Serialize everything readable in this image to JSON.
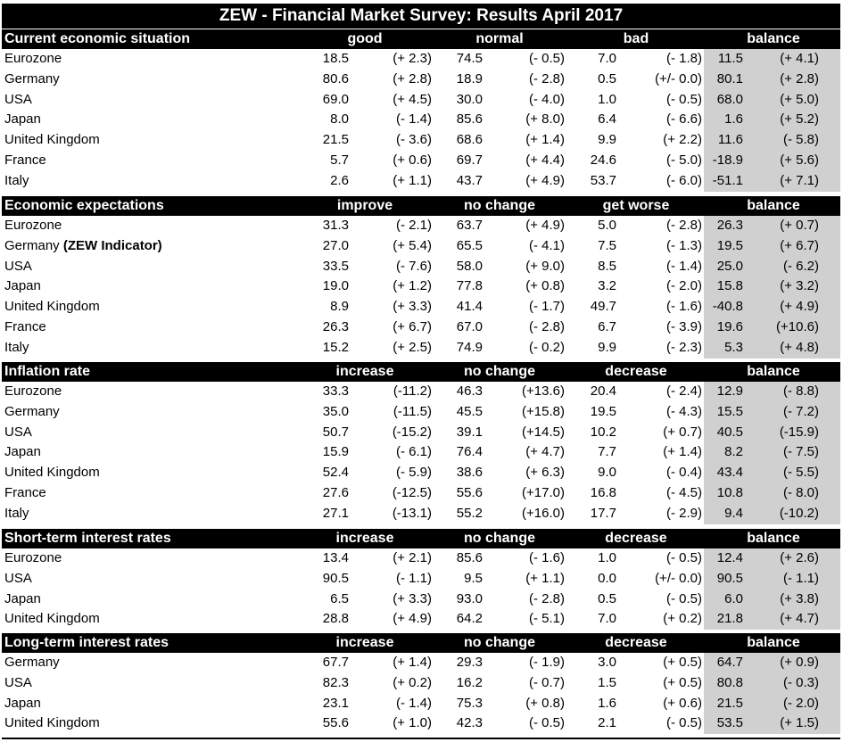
{
  "title": "ZEW - Financial Market Survey: Results April 2017",
  "sections": [
    {
      "name": "Current economic situation",
      "columns": [
        "good",
        "normal",
        "bad",
        "balance"
      ],
      "rows": [
        {
          "label": "Eurozone",
          "values": [
            "18.5",
            "(+ 2.3)",
            "74.5",
            "(- 0.5)",
            "7.0",
            "(- 1.8)",
            "11.5",
            "(+ 4.1)"
          ]
        },
        {
          "label": "Germany",
          "values": [
            "80.6",
            "(+ 2.8)",
            "18.9",
            "(- 2.8)",
            "0.5",
            "(+/- 0.0)",
            "80.1",
            "(+ 2.8)"
          ]
        },
        {
          "label": "USA",
          "values": [
            "69.0",
            "(+ 4.5)",
            "30.0",
            "(- 4.0)",
            "1.0",
            "(- 0.5)",
            "68.0",
            "(+ 5.0)"
          ]
        },
        {
          "label": "Japan",
          "values": [
            "8.0",
            "(- 1.4)",
            "85.6",
            "(+ 8.0)",
            "6.4",
            "(- 6.6)",
            "1.6",
            "(+ 5.2)"
          ]
        },
        {
          "label": "United Kingdom",
          "values": [
            "21.5",
            "(- 3.6)",
            "68.6",
            "(+ 1.4)",
            "9.9",
            "(+ 2.2)",
            "11.6",
            "(- 5.8)"
          ]
        },
        {
          "label": "France",
          "values": [
            "5.7",
            "(+ 0.6)",
            "69.7",
            "(+ 4.4)",
            "24.6",
            "(- 5.0)",
            "-18.9",
            "(+ 5.6)"
          ]
        },
        {
          "label": "Italy",
          "values": [
            "2.6",
            "(+ 1.1)",
            "43.7",
            "(+ 4.9)",
            "53.7",
            "(- 6.0)",
            "-51.1",
            "(+ 7.1)"
          ]
        }
      ]
    },
    {
      "name": "Economic expectations",
      "columns": [
        "improve",
        "no change",
        "get worse",
        "balance"
      ],
      "rows": [
        {
          "label": "Eurozone",
          "values": [
            "31.3",
            "(- 2.1)",
            "63.7",
            "(+ 4.9)",
            "5.0",
            "(- 2.8)",
            "26.3",
            "(+ 0.7)"
          ]
        },
        {
          "label": "Germany",
          "note": "(ZEW Indicator)",
          "values": [
            "27.0",
            "(+ 5.4)",
            "65.5",
            "(- 4.1)",
            "7.5",
            "(- 1.3)",
            "19.5",
            "(+ 6.7)"
          ]
        },
        {
          "label": "USA",
          "values": [
            "33.5",
            "(- 7.6)",
            "58.0",
            "(+ 9.0)",
            "8.5",
            "(- 1.4)",
            "25.0",
            "(- 6.2)"
          ]
        },
        {
          "label": "Japan",
          "values": [
            "19.0",
            "(+ 1.2)",
            "77.8",
            "(+ 0.8)",
            "3.2",
            "(- 2.0)",
            "15.8",
            "(+ 3.2)"
          ]
        },
        {
          "label": "United Kingdom",
          "values": [
            "8.9",
            "(+ 3.3)",
            "41.4",
            "(- 1.7)",
            "49.7",
            "(- 1.6)",
            "-40.8",
            "(+ 4.9)"
          ]
        },
        {
          "label": "France",
          "values": [
            "26.3",
            "(+ 6.7)",
            "67.0",
            "(- 2.8)",
            "6.7",
            "(- 3.9)",
            "19.6",
            "(+10.6)"
          ]
        },
        {
          "label": "Italy",
          "values": [
            "15.2",
            "(+ 2.5)",
            "74.9",
            "(- 0.2)",
            "9.9",
            "(- 2.3)",
            "5.3",
            "(+ 4.8)"
          ]
        }
      ]
    },
    {
      "name": "Inflation rate",
      "columns": [
        "increase",
        "no change",
        "decrease",
        "balance"
      ],
      "rows": [
        {
          "label": "Eurozone",
          "values": [
            "33.3",
            "(-11.2)",
            "46.3",
            "(+13.6)",
            "20.4",
            "(- 2.4)",
            "12.9",
            "(- 8.8)"
          ]
        },
        {
          "label": "Germany",
          "values": [
            "35.0",
            "(-11.5)",
            "45.5",
            "(+15.8)",
            "19.5",
            "(- 4.3)",
            "15.5",
            "(- 7.2)"
          ]
        },
        {
          "label": "USA",
          "values": [
            "50.7",
            "(-15.2)",
            "39.1",
            "(+14.5)",
            "10.2",
            "(+ 0.7)",
            "40.5",
            "(-15.9)"
          ]
        },
        {
          "label": "Japan",
          "values": [
            "15.9",
            "(- 6.1)",
            "76.4",
            "(+ 4.7)",
            "7.7",
            "(+ 1.4)",
            "8.2",
            "(- 7.5)"
          ]
        },
        {
          "label": "United Kingdom",
          "values": [
            "52.4",
            "(- 5.9)",
            "38.6",
            "(+ 6.3)",
            "9.0",
            "(- 0.4)",
            "43.4",
            "(- 5.5)"
          ]
        },
        {
          "label": "France",
          "values": [
            "27.6",
            "(-12.5)",
            "55.6",
            "(+17.0)",
            "16.8",
            "(- 4.5)",
            "10.8",
            "(- 8.0)"
          ]
        },
        {
          "label": "Italy",
          "values": [
            "27.1",
            "(-13.1)",
            "55.2",
            "(+16.0)",
            "17.7",
            "(- 2.9)",
            "9.4",
            "(-10.2)"
          ]
        }
      ]
    },
    {
      "name": "Short-term interest rates",
      "columns": [
        "increase",
        "no change",
        "decrease",
        "balance"
      ],
      "rows": [
        {
          "label": "Eurozone",
          "values": [
            "13.4",
            "(+ 2.1)",
            "85.6",
            "(- 1.6)",
            "1.0",
            "(- 0.5)",
            "12.4",
            "(+ 2.6)"
          ]
        },
        {
          "label": "USA",
          "values": [
            "90.5",
            "(- 1.1)",
            "9.5",
            "(+ 1.1)",
            "0.0",
            "(+/- 0.0)",
            "90.5",
            "(- 1.1)"
          ]
        },
        {
          "label": "Japan",
          "values": [
            "6.5",
            "(+ 3.3)",
            "93.0",
            "(- 2.8)",
            "0.5",
            "(- 0.5)",
            "6.0",
            "(+ 3.8)"
          ]
        },
        {
          "label": "United Kingdom",
          "values": [
            "28.8",
            "(+ 4.9)",
            "64.2",
            "(- 5.1)",
            "7.0",
            "(+ 0.2)",
            "21.8",
            "(+ 4.7)"
          ]
        }
      ]
    },
    {
      "name": "Long-term interest rates",
      "columns": [
        "increase",
        "no change",
        "decrease",
        "balance"
      ],
      "rows": [
        {
          "label": "Germany",
          "values": [
            "67.7",
            "(+ 1.4)",
            "29.3",
            "(- 1.9)",
            "3.0",
            "(+ 0.5)",
            "64.7",
            "(+ 0.9)"
          ]
        },
        {
          "label": "USA",
          "values": [
            "82.3",
            "(+ 0.2)",
            "16.2",
            "(- 0.7)",
            "1.5",
            "(+ 0.5)",
            "80.8",
            "(- 0.3)"
          ]
        },
        {
          "label": "Japan",
          "values": [
            "23.1",
            "(- 1.4)",
            "75.3",
            "(+ 0.8)",
            "1.6",
            "(+ 0.6)",
            "21.5",
            "(- 2.0)"
          ]
        },
        {
          "label": "United Kingdom",
          "values": [
            "55.6",
            "(+ 1.0)",
            "42.3",
            "(- 0.5)",
            "2.1",
            "(- 0.5)",
            "53.5",
            "(+ 1.5)"
          ]
        }
      ]
    }
  ]
}
